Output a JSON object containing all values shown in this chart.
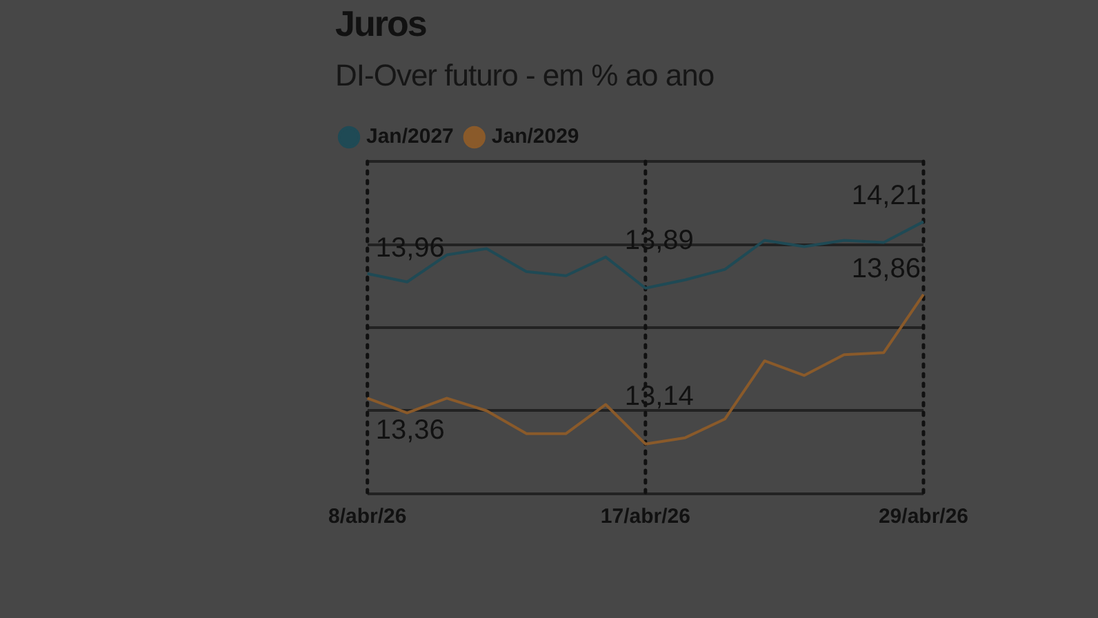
{
  "chart_data": {
    "type": "line",
    "title": "Juros",
    "subtitle": "DI-Over futuro - em % ao ano",
    "categories": [
      "8/abr/26",
      null,
      null,
      null,
      null,
      null,
      null,
      "17/abr/26",
      null,
      null,
      null,
      null,
      null,
      null,
      "29/abr/26"
    ],
    "series": [
      {
        "name": "Jan/2027",
        "color": "#1f4a55",
        "values": [
          13.96,
          13.92,
          14.05,
          14.08,
          13.97,
          13.95,
          14.04,
          13.89,
          13.93,
          13.98,
          14.12,
          14.09,
          14.12,
          14.11,
          14.21
        ],
        "value_labels": [
          "13,96",
          null,
          null,
          null,
          null,
          null,
          null,
          "13,89",
          null,
          null,
          null,
          null,
          null,
          null,
          "14,21"
        ]
      },
      {
        "name": "Jan/2029",
        "color": "#8a5a2a",
        "values": [
          13.36,
          13.29,
          13.36,
          13.3,
          13.19,
          13.19,
          13.33,
          13.14,
          13.17,
          13.26,
          13.54,
          13.47,
          13.57,
          13.58,
          13.86
        ],
        "value_labels": [
          "13,36",
          null,
          null,
          null,
          null,
          null,
          null,
          "13,14",
          null,
          null,
          null,
          null,
          null,
          null,
          "13,86"
        ]
      }
    ],
    "ylim": [
      12.9,
      14.5
    ],
    "yticks": [
      {
        "value": 12.9,
        "label": null
      },
      {
        "value": 13.3,
        "label": null
      },
      {
        "value": 13.7,
        "label": null
      },
      {
        "value": 14.1,
        "label": null
      },
      {
        "value": 14.5,
        "label": null
      }
    ],
    "ref_lines": [
      {
        "axis": "x",
        "value": "8/abr/26",
        "line_style": "dotted",
        "color": "#111111"
      },
      {
        "axis": "x",
        "value": "17/abr/26",
        "line_style": "dotted",
        "color": "#111111"
      },
      {
        "axis": "x",
        "value": "29/abr/26",
        "line_style": "dotted",
        "color": "#111111"
      }
    ],
    "grid": "y",
    "legend": "top left",
    "tick_labels": "x",
    "marker": "none",
    "line_style": "solid"
  }
}
